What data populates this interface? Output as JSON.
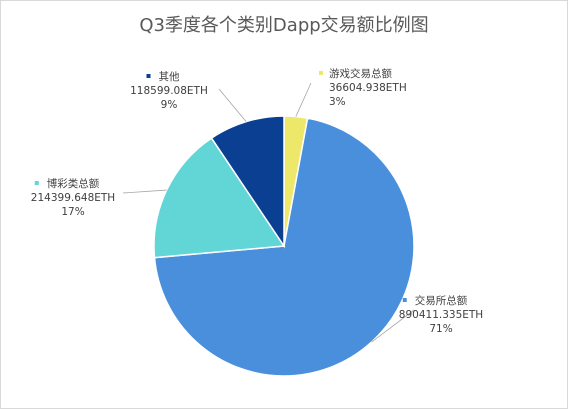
{
  "chart_data": {
    "type": "pie",
    "title": "Q3季度各个类别Dapp交易额比例图",
    "slices": [
      {
        "name": "游戏交易总额",
        "value_text": "36604.938ETH",
        "value": 36604.938,
        "percent_text": "3%",
        "color": "#eee86a"
      },
      {
        "name": "交易所总额",
        "value_text": "890411.335ETH",
        "value": 890411.335,
        "percent_text": "71%",
        "color": "#4a8fdc"
      },
      {
        "name": "博彩类总额",
        "value_text": "214399.648ETH",
        "value": 214399.648,
        "percent_text": "17%",
        "color": "#62d6d6"
      },
      {
        "name": "其他",
        "value_text": "118599.08ETH",
        "value": 118599.08,
        "percent_text": "9%",
        "color": "#0b3f92"
      }
    ],
    "legend": "callout-labels",
    "start_angle": "top",
    "direction": "clockwise"
  }
}
